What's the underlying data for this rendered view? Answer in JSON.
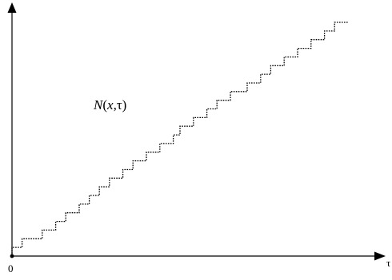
{
  "chart_data": {
    "type": "line",
    "title": "",
    "xlabel": "τ",
    "ylabel": "",
    "x_ticks": [
      "0"
    ],
    "grid": false,
    "annotations": [
      {
        "parts": [
          "N",
          "(",
          "x",
          ",τ)"
        ]
      }
    ],
    "series": [
      {
        "style": "dotted step",
        "color": "#000000",
        "points": [
          [
            0.0,
            0
          ],
          [
            0.03,
            1
          ],
          [
            0.09,
            2
          ],
          [
            0.13,
            3
          ],
          [
            0.16,
            4
          ],
          [
            0.2,
            5
          ],
          [
            0.23,
            6
          ],
          [
            0.26,
            7
          ],
          [
            0.29,
            8
          ],
          [
            0.33,
            9
          ],
          [
            0.36,
            10
          ],
          [
            0.4,
            11
          ],
          [
            0.44,
            12
          ],
          [
            0.48,
            13
          ],
          [
            0.5,
            14
          ],
          [
            0.54,
            15
          ],
          [
            0.58,
            16
          ],
          [
            0.61,
            17
          ],
          [
            0.65,
            18
          ],
          [
            0.7,
            19
          ],
          [
            0.74,
            20
          ],
          [
            0.77,
            21
          ],
          [
            0.81,
            22
          ],
          [
            0.85,
            23
          ],
          [
            0.89,
            24
          ],
          [
            0.93,
            25
          ],
          [
            0.96,
            26
          ],
          [
            1.0,
            27
          ]
        ]
      }
    ],
    "xlim": [
      0,
      1
    ],
    "ylim": [
      0,
      27
    ]
  }
}
